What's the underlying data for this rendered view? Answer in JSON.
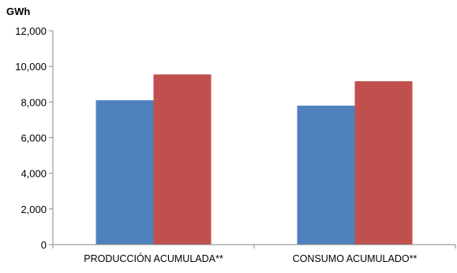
{
  "chart_data": {
    "type": "bar",
    "title": "",
    "xlabel": "",
    "ylabel": "GWh",
    "categories": [
      "PRODUCCIÓN ACUMULADA**",
      "CONSUMO ACUMULADO**"
    ],
    "series": [
      {
        "values": [
          8100,
          7800
        ]
      },
      {
        "values": [
          9550,
          9170
        ]
      }
    ],
    "ylim": [
      0,
      12000
    ],
    "yticks": [
      0,
      2000,
      4000,
      6000,
      8000,
      10000,
      12000
    ],
    "ytick_labels": [
      "0",
      "2,000",
      "4,000",
      "6,000",
      "8,000",
      "10,000",
      "12,000"
    ],
    "grid": false,
    "legend": "none",
    "colors": [
      "#4f81bd",
      "#c0504d"
    ]
  }
}
